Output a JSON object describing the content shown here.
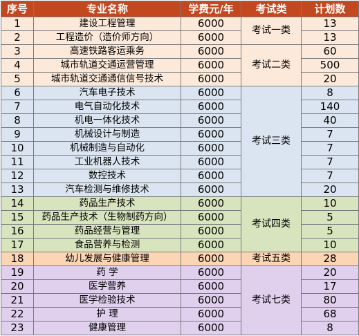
{
  "headers": [
    "序号",
    "专业名称",
    "学费元/年",
    "考试类",
    "计划数"
  ],
  "groups": [
    {
      "category": "考试一类",
      "color": "#fde9d9",
      "rows": [
        {
          "no": "1",
          "major": "建设工程管理",
          "fee": "6000",
          "plan": "13"
        },
        {
          "no": "2",
          "major": "工程造价（造价师方向）",
          "fee": "6000",
          "plan": "13"
        }
      ]
    },
    {
      "category": "考试二类",
      "color": "#fde9d9",
      "rows": [
        {
          "no": "3",
          "major": "高速铁路客运乘务",
          "fee": "6000",
          "plan": "60"
        },
        {
          "no": "4",
          "major": "城市轨道交通运营管理",
          "fee": "6000",
          "plan": "500"
        },
        {
          "no": "5",
          "major": "城市轨道交通通信信号技术",
          "fee": "6000",
          "plan": "20"
        }
      ]
    },
    {
      "category": "考试三类",
      "color": "#dbe5f1",
      "rows": [
        {
          "no": "6",
          "major": "汽车电子技术",
          "fee": "6000",
          "plan": "8"
        },
        {
          "no": "7",
          "major": "电气自动化技术",
          "fee": "6000",
          "plan": "140"
        },
        {
          "no": "8",
          "major": "机电一体化技术",
          "fee": "6000",
          "plan": "40"
        },
        {
          "no": "9",
          "major": "机械设计与制造",
          "fee": "6000",
          "plan": "7"
        },
        {
          "no": "10",
          "major": "机械制造与自动化",
          "fee": "6000",
          "plan": "7"
        },
        {
          "no": "11",
          "major": "工业机器人技术",
          "fee": "6000",
          "plan": "7"
        },
        {
          "no": "12",
          "major": "数控技术",
          "fee": "6000",
          "plan": "7"
        },
        {
          "no": "13",
          "major": "汽车检测与维修技术",
          "fee": "6000",
          "plan": "20"
        }
      ]
    },
    {
      "category": "考试四类",
      "color": "#d7e4bd",
      "rows": [
        {
          "no": "14",
          "major": "药品生产技术",
          "fee": "6000",
          "plan": "10"
        },
        {
          "no": "15",
          "major": "药品生产技术（生物制药方向）",
          "fee": "6000",
          "plan": "5"
        },
        {
          "no": "16",
          "major": "药品经营与管理",
          "fee": "6000",
          "plan": "5"
        },
        {
          "no": "17",
          "major": "食品营养与检测",
          "fee": "6000",
          "plan": "10"
        }
      ]
    },
    {
      "category": "考试五类",
      "color": "#fcd5b4",
      "rows": [
        {
          "no": "18",
          "major": "幼儿发展与健康管理",
          "fee": "6000",
          "plan": "28"
        }
      ]
    },
    {
      "category": "考试七类",
      "color": "#e0d0ee",
      "rows": [
        {
          "no": "19",
          "major": "药 学",
          "fee": "6000",
          "plan": "20"
        },
        {
          "no": "20",
          "major": "医学营养",
          "fee": "6000",
          "plan": "17"
        },
        {
          "no": "21",
          "major": "医学检验技术",
          "fee": "6000",
          "plan": "80"
        },
        {
          "no": "22",
          "major": "护 理",
          "fee": "6000",
          "plan": "68"
        },
        {
          "no": "23",
          "major": "健康管理",
          "fee": "6000",
          "plan": "8"
        }
      ]
    }
  ]
}
